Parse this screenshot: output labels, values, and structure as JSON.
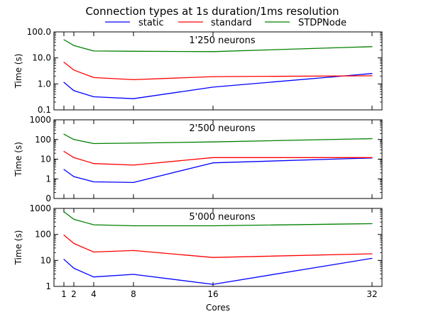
{
  "chart_data": {
    "type": "line",
    "title": "Connection types at 1s duration/1ms resolution",
    "xlabel": "Cores",
    "x": [
      1,
      2,
      4,
      8,
      16,
      32
    ],
    "xlim": [
      0,
      33
    ],
    "x_tick_labels": [
      "1",
      "2",
      "4",
      "8",
      "16",
      "32"
    ],
    "legend": {
      "position": "top-center",
      "entries": [
        {
          "name": "static",
          "color": "#0000ff"
        },
        {
          "name": "standard",
          "color": "#ff0000"
        },
        {
          "name": "STDPNode",
          "color": "#008000"
        }
      ]
    },
    "subplots": [
      {
        "annotation": "1'250 neurons",
        "ylabel": "Time (s)",
        "yscale": "log",
        "ylim": [
          0.1,
          100
        ],
        "y_ticks": [
          0.1,
          1,
          10,
          100
        ],
        "y_tick_labels": [
          "0.1",
          "1.0",
          "10.0",
          "100.0"
        ],
        "series": [
          {
            "name": "static",
            "values": [
              1.15,
              0.55,
              0.32,
              0.27,
              0.75,
              2.5
            ]
          },
          {
            "name": "standard",
            "values": [
              6.8,
              3.4,
              1.75,
              1.45,
              1.9,
              2.05
            ]
          },
          {
            "name": "STDPNode",
            "values": [
              50,
              30,
              18.5,
              18,
              17.5,
              27
            ]
          }
        ]
      },
      {
        "annotation": "2'500 neurons",
        "ylabel": "Time (s)",
        "yscale": "log",
        "ylim": [
          0.1,
          1000
        ],
        "y_ticks": [
          0.1,
          1,
          10,
          100,
          1000
        ],
        "y_tick_labels": [
          "0",
          "1",
          "10",
          "100",
          "1000"
        ],
        "series": [
          {
            "name": "static",
            "values": [
              3.0,
              1.3,
              0.7,
              0.65,
              6.5,
              11.5
            ]
          },
          {
            "name": "standard",
            "values": [
              25,
              12,
              6,
              5,
              12,
              12
            ]
          },
          {
            "name": "STDPNode",
            "values": [
              185,
              100,
              62,
              65,
              75,
              110
            ]
          }
        ]
      },
      {
        "annotation": "5'000 neurons",
        "ylabel": "Time (s)",
        "yscale": "log",
        "ylim": [
          1,
          1000
        ],
        "y_ticks": [
          1,
          10,
          100,
          1000
        ],
        "y_tick_labels": [
          "1",
          "10",
          "100",
          "1000"
        ],
        "series": [
          {
            "name": "static",
            "values": [
              11,
              5,
              2.3,
              2.9,
              1.2,
              12
            ]
          },
          {
            "name": "standard",
            "values": [
              95,
              45,
              21,
              24,
              13,
              18
            ]
          },
          {
            "name": "STDPNode",
            "values": [
              750,
              380,
              235,
              215,
              215,
              260
            ]
          }
        ]
      }
    ]
  }
}
